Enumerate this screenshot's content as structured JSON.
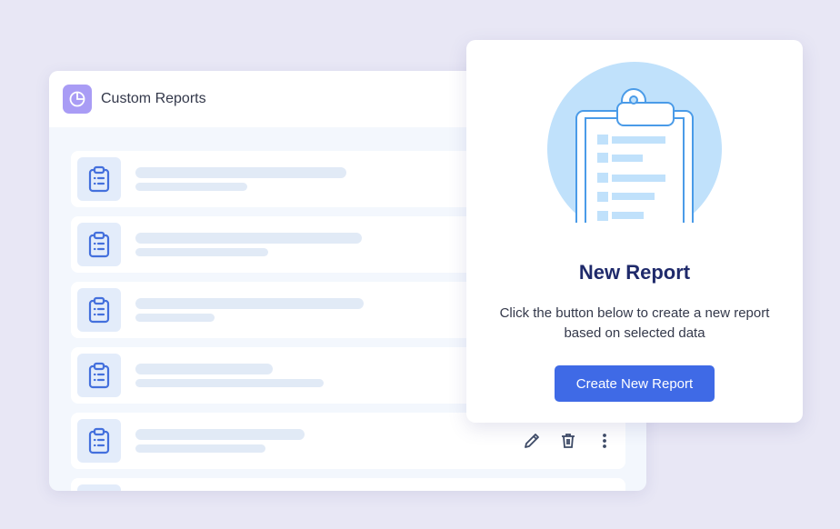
{
  "reports_panel": {
    "title": "Custom Reports",
    "icon": "pie-chart-icon",
    "rows": [
      {
        "icon": "clipboard-list-icon"
      },
      {
        "icon": "clipboard-list-icon"
      },
      {
        "icon": "clipboard-list-icon"
      },
      {
        "icon": "clipboard-list-icon"
      },
      {
        "icon": "clipboard-list-icon",
        "actions": [
          "edit-icon",
          "trash-icon",
          "more-vertical-icon"
        ]
      },
      {
        "icon": "clipboard-list-icon"
      }
    ]
  },
  "new_report_card": {
    "illustration": "clipboard-illustration",
    "title": "New Report",
    "description": "Click the button below to create a new report based on selected data",
    "button_label": "Create New Report"
  },
  "colors": {
    "accent": "#3f6ae6",
    "title": "#1f2a6b",
    "logo": "#a99cf5",
    "background": "#e8e7f5"
  }
}
